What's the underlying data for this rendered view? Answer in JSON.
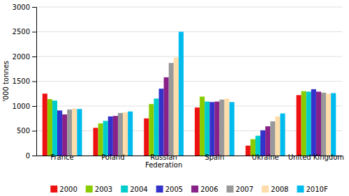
{
  "chart_data": {
    "type": "bar",
    "categories": [
      "France",
      "Poland",
      "Russian\nFederation",
      "Spain",
      "Ukraine",
      "United Kingdom"
    ],
    "series": [
      {
        "name": "2000",
        "color": "#EE1111",
        "values": [
          1250,
          560,
          750,
          970,
          200,
          1220
        ]
      },
      {
        "name": "2003",
        "color": "#88CC00",
        "values": [
          1140,
          650,
          1040,
          1190,
          330,
          1300
        ]
      },
      {
        "name": "2004",
        "color": "#00CCCC",
        "values": [
          1110,
          700,
          1150,
          1090,
          400,
          1290
        ]
      },
      {
        "name": "2005",
        "color": "#3333CC",
        "values": [
          910,
          790,
          1350,
          1080,
          510,
          1340
        ]
      },
      {
        "name": "2006",
        "color": "#882288",
        "values": [
          830,
          800,
          1580,
          1090,
          590,
          1290
        ]
      },
      {
        "name": "2007",
        "color": "#999999",
        "values": [
          930,
          860,
          1870,
          1130,
          690,
          1270
        ]
      },
      {
        "name": "2008",
        "color": "#FFDDAA",
        "values": [
          950,
          870,
          1980,
          1150,
          790,
          1250
        ]
      },
      {
        "name": "2010F",
        "color": "#00BBEE",
        "values": [
          940,
          890,
          2500,
          1080,
          850,
          1260
        ]
      }
    ],
    "ylabel": "'000 tonnes",
    "ylim": [
      0,
      3000
    ],
    "yticks": [
      0,
      500,
      1000,
      1500,
      2000,
      2500,
      3000
    ],
    "grid": true,
    "legend": "bottom"
  }
}
